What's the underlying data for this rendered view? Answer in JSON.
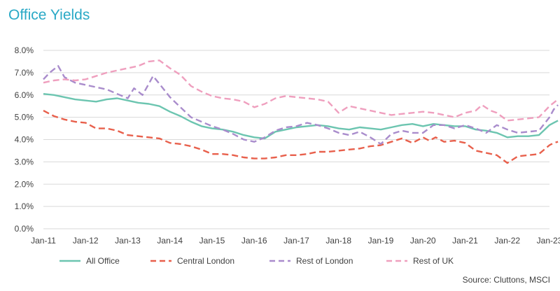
{
  "title": "Office Yields",
  "source": "Source: Cluttons, MSCI",
  "colors": {
    "title": "#2aa9c6",
    "axis_text": "#404040",
    "grid": "#d9d9d9",
    "all_office": "#6cc5b0",
    "central_london": "#e8604c",
    "rest_of_london": "#a98ccc",
    "rest_of_uk": "#ef9fbe"
  },
  "chart_data": {
    "type": "line",
    "title": "Office Yields",
    "xlabel": "",
    "ylabel": "",
    "ylim": [
      0,
      8
    ],
    "xlim": [
      2011,
      2023
    ],
    "grid": "horizontal",
    "legend_position": "bottom",
    "y_ticks": [
      {
        "value": 0,
        "label": "0.0%"
      },
      {
        "value": 1,
        "label": "1.0%"
      },
      {
        "value": 2,
        "label": "2.0%"
      },
      {
        "value": 3,
        "label": "3.0%"
      },
      {
        "value": 4,
        "label": "4.0%"
      },
      {
        "value": 5,
        "label": "5.0%"
      },
      {
        "value": 6,
        "label": "6.0%"
      },
      {
        "value": 7,
        "label": "7.0%"
      },
      {
        "value": 8,
        "label": "8.0%"
      }
    ],
    "x_ticks": [
      {
        "value": 2011,
        "label": "Jan-11"
      },
      {
        "value": 2012,
        "label": "Jan-12"
      },
      {
        "value": 2013,
        "label": "Jan-13"
      },
      {
        "value": 2014,
        "label": "Jan-14"
      },
      {
        "value": 2015,
        "label": "Jan-15"
      },
      {
        "value": 2016,
        "label": "Jan-16"
      },
      {
        "value": 2017,
        "label": "Jan-17"
      },
      {
        "value": 2018,
        "label": "Jan-18"
      },
      {
        "value": 2019,
        "label": "Jan-19"
      },
      {
        "value": 2020,
        "label": "Jan-20"
      },
      {
        "value": 2021,
        "label": "Jan-21"
      },
      {
        "value": 2022,
        "label": "Jan-22"
      },
      {
        "value": 2023,
        "label": "Jan-23"
      }
    ],
    "series": [
      {
        "name": "All Office",
        "color": "#6cc5b0",
        "dash": "solid",
        "points": [
          [
            2011,
            6.05
          ],
          [
            2011.25,
            6.0
          ],
          [
            2011.5,
            5.9
          ],
          [
            2011.75,
            5.8
          ],
          [
            2012,
            5.75
          ],
          [
            2012.25,
            5.7
          ],
          [
            2012.5,
            5.8
          ],
          [
            2012.75,
            5.85
          ],
          [
            2013,
            5.75
          ],
          [
            2013.25,
            5.65
          ],
          [
            2013.5,
            5.6
          ],
          [
            2013.75,
            5.5
          ],
          [
            2014,
            5.25
          ],
          [
            2014.25,
            5.05
          ],
          [
            2014.5,
            4.8
          ],
          [
            2014.75,
            4.6
          ],
          [
            2015,
            4.5
          ],
          [
            2015.25,
            4.45
          ],
          [
            2015.5,
            4.35
          ],
          [
            2015.75,
            4.2
          ],
          [
            2016,
            4.1
          ],
          [
            2016.25,
            4.05
          ],
          [
            2016.5,
            4.35
          ],
          [
            2016.75,
            4.45
          ],
          [
            2017,
            4.55
          ],
          [
            2017.25,
            4.6
          ],
          [
            2017.5,
            4.65
          ],
          [
            2017.75,
            4.6
          ],
          [
            2018,
            4.5
          ],
          [
            2018.25,
            4.45
          ],
          [
            2018.5,
            4.55
          ],
          [
            2018.75,
            4.5
          ],
          [
            2019,
            4.45
          ],
          [
            2019.25,
            4.55
          ],
          [
            2019.5,
            4.65
          ],
          [
            2019.75,
            4.7
          ],
          [
            2020,
            4.6
          ],
          [
            2020.25,
            4.7
          ],
          [
            2020.5,
            4.65
          ],
          [
            2020.75,
            4.6
          ],
          [
            2021,
            4.6
          ],
          [
            2021.25,
            4.45
          ],
          [
            2021.5,
            4.4
          ],
          [
            2021.75,
            4.3
          ],
          [
            2022,
            4.1
          ],
          [
            2022.25,
            4.15
          ],
          [
            2022.5,
            4.15
          ],
          [
            2022.75,
            4.2
          ],
          [
            2023,
            4.65
          ],
          [
            2023.1,
            4.75
          ],
          [
            2023.2,
            4.85
          ]
        ]
      },
      {
        "name": "Central London",
        "color": "#e8604c",
        "dash": "dashed",
        "points": [
          [
            2011,
            5.3
          ],
          [
            2011.25,
            5.05
          ],
          [
            2011.5,
            4.9
          ],
          [
            2011.75,
            4.8
          ],
          [
            2012,
            4.75
          ],
          [
            2012.25,
            4.5
          ],
          [
            2012.5,
            4.5
          ],
          [
            2012.75,
            4.4
          ],
          [
            2013,
            4.2
          ],
          [
            2013.25,
            4.15
          ],
          [
            2013.5,
            4.1
          ],
          [
            2013.75,
            4.05
          ],
          [
            2014,
            3.85
          ],
          [
            2014.25,
            3.8
          ],
          [
            2014.5,
            3.7
          ],
          [
            2014.75,
            3.55
          ],
          [
            2015,
            3.35
          ],
          [
            2015.25,
            3.35
          ],
          [
            2015.5,
            3.3
          ],
          [
            2015.75,
            3.2
          ],
          [
            2016,
            3.15
          ],
          [
            2016.25,
            3.15
          ],
          [
            2016.5,
            3.2
          ],
          [
            2016.75,
            3.3
          ],
          [
            2017,
            3.3
          ],
          [
            2017.25,
            3.35
          ],
          [
            2017.5,
            3.45
          ],
          [
            2017.75,
            3.45
          ],
          [
            2018,
            3.5
          ],
          [
            2018.25,
            3.55
          ],
          [
            2018.5,
            3.6
          ],
          [
            2018.75,
            3.7
          ],
          [
            2019,
            3.75
          ],
          [
            2019.25,
            3.9
          ],
          [
            2019.5,
            4.05
          ],
          [
            2019.75,
            3.85
          ],
          [
            2020,
            4.1
          ],
          [
            2020.15,
            3.95
          ],
          [
            2020.3,
            4.1
          ],
          [
            2020.5,
            3.9
          ],
          [
            2020.75,
            3.95
          ],
          [
            2021,
            3.85
          ],
          [
            2021.25,
            3.5
          ],
          [
            2021.5,
            3.4
          ],
          [
            2021.75,
            3.3
          ],
          [
            2022,
            2.95
          ],
          [
            2022.25,
            3.25
          ],
          [
            2022.5,
            3.3
          ],
          [
            2022.75,
            3.35
          ],
          [
            2023,
            3.75
          ],
          [
            2023.1,
            3.85
          ],
          [
            2023.2,
            3.9
          ]
        ]
      },
      {
        "name": "Rest of London",
        "color": "#a98ccc",
        "dash": "dashed",
        "points": [
          [
            2011,
            6.7
          ],
          [
            2011.15,
            7.0
          ],
          [
            2011.35,
            7.3
          ],
          [
            2011.5,
            6.8
          ],
          [
            2011.75,
            6.55
          ],
          [
            2012,
            6.45
          ],
          [
            2012.25,
            6.35
          ],
          [
            2012.5,
            6.25
          ],
          [
            2012.75,
            6.05
          ],
          [
            2013,
            5.85
          ],
          [
            2013.15,
            6.3
          ],
          [
            2013.35,
            6.0
          ],
          [
            2013.5,
            6.5
          ],
          [
            2013.6,
            6.85
          ],
          [
            2013.75,
            6.5
          ],
          [
            2014,
            5.9
          ],
          [
            2014.25,
            5.45
          ],
          [
            2014.5,
            5.0
          ],
          [
            2014.75,
            4.8
          ],
          [
            2015,
            4.6
          ],
          [
            2015.25,
            4.45
          ],
          [
            2015.5,
            4.25
          ],
          [
            2015.75,
            4.0
          ],
          [
            2016,
            3.9
          ],
          [
            2016.25,
            4.1
          ],
          [
            2016.5,
            4.4
          ],
          [
            2016.75,
            4.55
          ],
          [
            2017,
            4.6
          ],
          [
            2017.25,
            4.75
          ],
          [
            2017.5,
            4.65
          ],
          [
            2017.75,
            4.5
          ],
          [
            2018,
            4.3
          ],
          [
            2018.25,
            4.2
          ],
          [
            2018.5,
            4.35
          ],
          [
            2018.75,
            4.1
          ],
          [
            2019,
            3.8
          ],
          [
            2019.25,
            4.25
          ],
          [
            2019.5,
            4.4
          ],
          [
            2019.75,
            4.3
          ],
          [
            2020,
            4.3
          ],
          [
            2020.25,
            4.65
          ],
          [
            2020.5,
            4.65
          ],
          [
            2020.75,
            4.5
          ],
          [
            2021,
            4.65
          ],
          [
            2021.25,
            4.5
          ],
          [
            2021.5,
            4.3
          ],
          [
            2021.75,
            4.65
          ],
          [
            2022,
            4.45
          ],
          [
            2022.25,
            4.3
          ],
          [
            2022.5,
            4.35
          ],
          [
            2022.75,
            4.4
          ],
          [
            2023,
            5.0
          ],
          [
            2023.1,
            5.35
          ],
          [
            2023.2,
            5.55
          ]
        ]
      },
      {
        "name": "Rest of UK",
        "color": "#ef9fbe",
        "dash": "dashed",
        "points": [
          [
            2011,
            6.55
          ],
          [
            2011.25,
            6.65
          ],
          [
            2011.5,
            6.7
          ],
          [
            2011.75,
            6.65
          ],
          [
            2012,
            6.7
          ],
          [
            2012.25,
            6.85
          ],
          [
            2012.5,
            7.0
          ],
          [
            2012.75,
            7.1
          ],
          [
            2013,
            7.2
          ],
          [
            2013.25,
            7.3
          ],
          [
            2013.5,
            7.5
          ],
          [
            2013.75,
            7.55
          ],
          [
            2014,
            7.2
          ],
          [
            2014.25,
            6.9
          ],
          [
            2014.5,
            6.4
          ],
          [
            2014.75,
            6.15
          ],
          [
            2015,
            5.95
          ],
          [
            2015.25,
            5.85
          ],
          [
            2015.5,
            5.8
          ],
          [
            2015.75,
            5.7
          ],
          [
            2016,
            5.45
          ],
          [
            2016.25,
            5.6
          ],
          [
            2016.5,
            5.85
          ],
          [
            2016.75,
            5.95
          ],
          [
            2017,
            5.9
          ],
          [
            2017.25,
            5.85
          ],
          [
            2017.5,
            5.8
          ],
          [
            2017.75,
            5.7
          ],
          [
            2018,
            5.2
          ],
          [
            2018.25,
            5.5
          ],
          [
            2018.5,
            5.4
          ],
          [
            2018.75,
            5.3
          ],
          [
            2019,
            5.2
          ],
          [
            2019.25,
            5.1
          ],
          [
            2019.5,
            5.15
          ],
          [
            2019.75,
            5.2
          ],
          [
            2020,
            5.25
          ],
          [
            2020.25,
            5.2
          ],
          [
            2020.5,
            5.1
          ],
          [
            2020.75,
            5.0
          ],
          [
            2021,
            5.2
          ],
          [
            2021.25,
            5.3
          ],
          [
            2021.4,
            5.55
          ],
          [
            2021.6,
            5.3
          ],
          [
            2021.75,
            5.2
          ],
          [
            2022,
            4.85
          ],
          [
            2022.25,
            4.9
          ],
          [
            2022.5,
            4.95
          ],
          [
            2022.75,
            5.0
          ],
          [
            2023,
            5.5
          ],
          [
            2023.1,
            5.65
          ],
          [
            2023.2,
            5.8
          ]
        ]
      }
    ]
  }
}
